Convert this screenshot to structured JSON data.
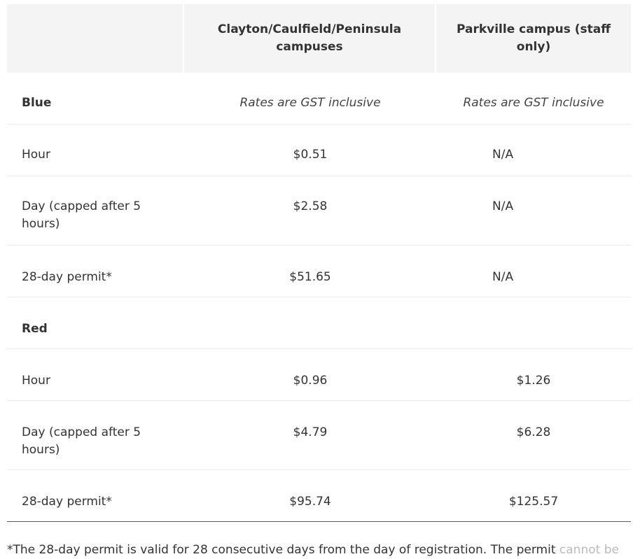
{
  "header": {
    "col0": "",
    "col1": "Clayton/Caulfield/Peninsula campuses",
    "col2": "Parkville campus (staff only)"
  },
  "rows": [
    {
      "label": "Blue",
      "v1": "Rates are GST inclusive",
      "v2": "Rates are GST inclusive"
    },
    {
      "label": "Hour",
      "v1": "$0.51",
      "v2": "N/A"
    },
    {
      "label": "Day (capped after 5 hours)",
      "v1": "$2.58",
      "v2": "N/A"
    },
    {
      "label": "28-day permit*",
      "v1": "$51.65",
      "v2": "N/A"
    },
    {
      "label": "Red",
      "v1": "",
      "v2": ""
    },
    {
      "label": "Hour",
      "v1": "$0.96",
      "v2": "$1.26"
    },
    {
      "label": "Day (capped after 5 hours)",
      "v1": "$4.79",
      "v2": "$6.28"
    },
    {
      "label": "28-day permit*",
      "v1": "$95.74",
      "v2": "$125.57"
    }
  ],
  "footnote": {
    "text": "*The 28-day permit is valid for 28 consecutive days from the day of registration. The permit ",
    "faded": "cannot be"
  }
}
